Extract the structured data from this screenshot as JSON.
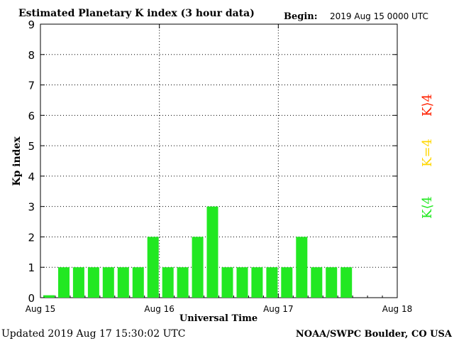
{
  "header": {
    "title": "Estimated Planetary K index (3 hour data)",
    "begin_label": "Begin:",
    "begin_value": "2019 Aug 15 0000 UTC"
  },
  "footer": {
    "updated": "Updated 2019 Aug 17 15:30:02 UTC",
    "source": "NOAA/SWPC Boulder, CO USA"
  },
  "legend": {
    "high": {
      "label": "K⟩4",
      "color": "#ff2000"
    },
    "mid": {
      "label": "K=4",
      "color": "#ffd700"
    },
    "low": {
      "label": "K⟨4",
      "color": "#22e822"
    }
  },
  "chart_data": {
    "type": "bar",
    "title": "Estimated Planetary K index (3 hour data)",
    "xlabel": "Universal Time",
    "ylabel": "Kp index",
    "ylim": [
      0,
      9
    ],
    "yticks": [
      "0",
      "1",
      "2",
      "3",
      "4",
      "5",
      "6",
      "7",
      "8",
      "9"
    ],
    "xticks": [
      "Aug 15",
      "Aug 16",
      "Aug 17",
      "Aug 18"
    ],
    "bars_per_day": 8,
    "values": [
      0,
      1,
      1,
      1,
      1,
      1,
      1,
      2,
      1,
      1,
      2,
      3,
      1,
      1,
      1,
      1,
      1,
      2,
      1,
      1,
      1
    ],
    "bar_color": "#22e822",
    "grid": "dotted",
    "legend_placement": "right"
  }
}
